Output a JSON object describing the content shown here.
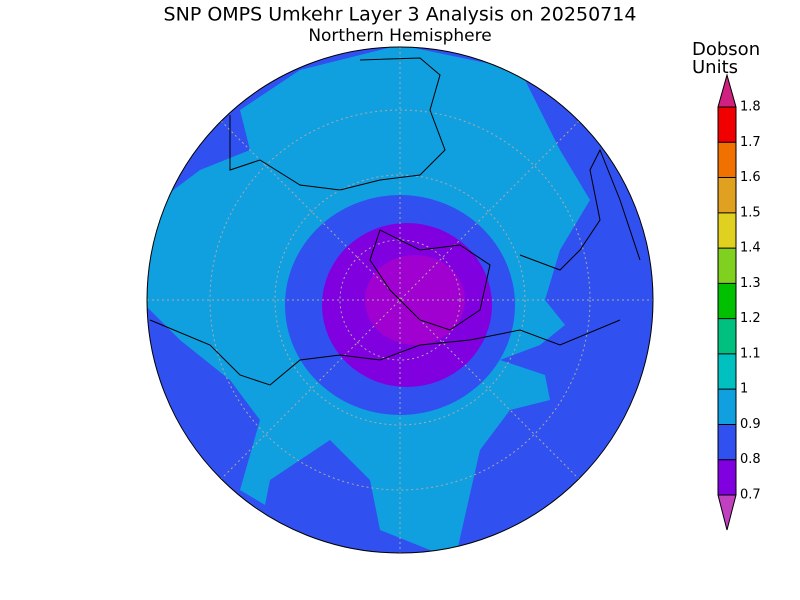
{
  "header": {
    "title": "SNP OMPS Umkehr Layer 3 Analysis on 20250714",
    "subtitle": "Northern Hemisphere"
  },
  "colorbar": {
    "label_lines": [
      "Dobson",
      "Units"
    ],
    "ticks": [
      "0.7",
      "0.8",
      "0.9",
      "1",
      "1.1",
      "1.2",
      "1.3",
      "1.4",
      "1.5",
      "1.6",
      "1.7",
      "1.8"
    ],
    "colors": [
      "#8000e0",
      "#3050f0",
      "#10a0e0",
      "#00c0c0",
      "#00c080",
      "#00c000",
      "#80d020",
      "#e0d020",
      "#e0a020",
      "#f07000",
      "#f00000"
    ],
    "under_color": "#c040c0",
    "over_color": "#d02080"
  }
}
